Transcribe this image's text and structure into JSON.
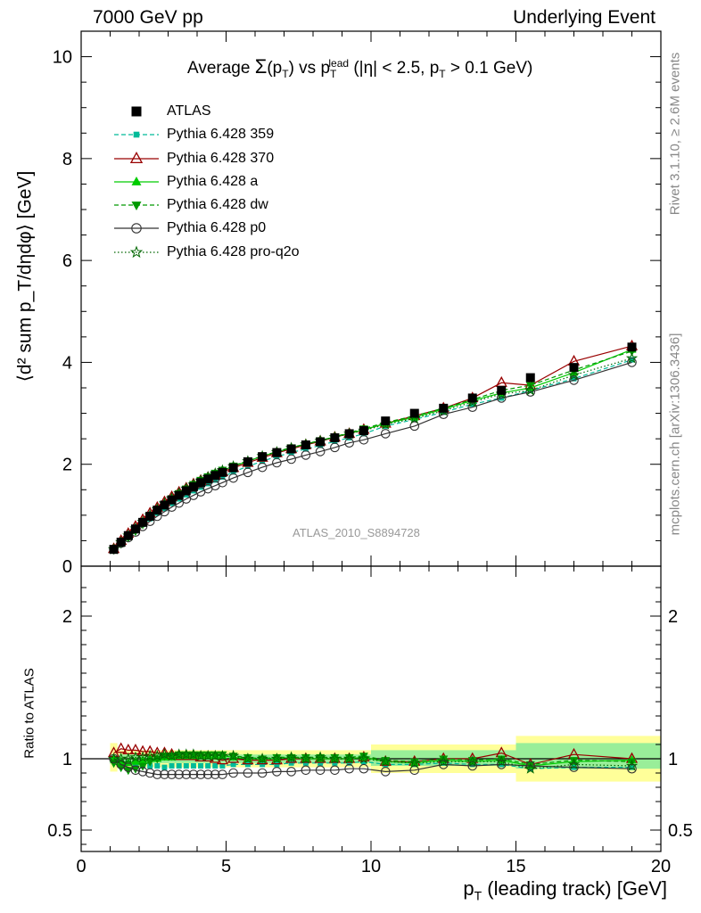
{
  "header": {
    "left": "7000 GeV pp",
    "right": "Underlying Event"
  },
  "title": {
    "prefix": "Average ",
    "sigma": "Σ",
    "p": "(p",
    "t_sub": "T",
    "close": ")",
    "vs": " vs p",
    "lead_sup": "lead",
    "lead_sub": "T",
    "cut": " (|η| < 2.5, p",
    "cut_sub": "T",
    "cut_end": " > 0.1 GeV)"
  },
  "axes": {
    "y_main_label": "⟨d² sum p_T/dηdφ⟩ [GeV]",
    "y_ratio_label": "Ratio to ATLAS",
    "x_label_pre": "p",
    "x_label_sub": "T",
    "x_label_post": " (leading track) [GeV]"
  },
  "side": {
    "rivet": "Rivet 3.1.10, ≥ 2.6M events",
    "mcplots": "mcplots.cern.ch [arXiv:1306.3436]"
  },
  "watermark": "ATLAS_2010_S8894728",
  "legend": [
    {
      "label": "ATLAS",
      "color": "#000000",
      "marker": "square-filled",
      "line": "none"
    },
    {
      "label": "Pythia 6.428 359",
      "color": "#00bb99",
      "marker": "square-small",
      "line": "dashed"
    },
    {
      "label": "Pythia 6.428 370",
      "color": "#990000",
      "marker": "triangle-open",
      "line": "solid"
    },
    {
      "label": "Pythia 6.428 a",
      "color": "#00cc00",
      "marker": "triangle-filled",
      "line": "solid"
    },
    {
      "label": "Pythia 6.428 dw",
      "color": "#009900",
      "marker": "triangle-down",
      "line": "dashed"
    },
    {
      "label": "Pythia 6.428 p0",
      "color": "#333333",
      "marker": "circle-open",
      "line": "solid"
    },
    {
      "label": "Pythia 6.428 pro-q2o",
      "color": "#006600",
      "marker": "star",
      "line": "dotted"
    }
  ],
  "chart_data": [
    {
      "type": "scatter",
      "panel": "main",
      "x": [
        1.125,
        1.375,
        1.625,
        1.875,
        2.125,
        2.375,
        2.625,
        2.875,
        3.125,
        3.375,
        3.625,
        3.875,
        4.125,
        4.375,
        4.625,
        4.875,
        5.25,
        5.75,
        6.25,
        6.75,
        7.25,
        7.75,
        8.25,
        8.75,
        9.25,
        9.75,
        10.5,
        11.5,
        12.5,
        13.5,
        14.5,
        15.5,
        17,
        19
      ],
      "xlim": [
        0,
        20
      ],
      "ylim": [
        0,
        10.5
      ],
      "yticks": [
        0,
        2,
        4,
        6,
        8,
        10
      ],
      "xticks": [
        0,
        5,
        10,
        15,
        20
      ],
      "series": [
        {
          "name": "ATLAS",
          "values": [
            0.33,
            0.47,
            0.6,
            0.73,
            0.86,
            0.98,
            1.1,
            1.2,
            1.3,
            1.39,
            1.48,
            1.56,
            1.64,
            1.71,
            1.78,
            1.84,
            1.93,
            2.05,
            2.15,
            2.23,
            2.3,
            2.38,
            2.44,
            2.52,
            2.6,
            2.66,
            2.85,
            3.0,
            3.1,
            3.3,
            3.45,
            3.7,
            3.9,
            4.3
          ]
        },
        {
          "name": "Pythia 6.428 359",
          "values": [
            0.33,
            0.46,
            0.58,
            0.7,
            0.82,
            0.93,
            1.04,
            1.13,
            1.23,
            1.32,
            1.4,
            1.48,
            1.55,
            1.62,
            1.69,
            1.75,
            1.85,
            1.96,
            2.06,
            2.15,
            2.23,
            2.3,
            2.37,
            2.45,
            2.52,
            2.6,
            2.75,
            2.88,
            3.02,
            3.18,
            3.3,
            3.45,
            3.68,
            4.05
          ]
        },
        {
          "name": "Pythia 6.428 370",
          "values": [
            0.34,
            0.5,
            0.64,
            0.78,
            0.91,
            1.04,
            1.15,
            1.26,
            1.36,
            1.45,
            1.53,
            1.61,
            1.68,
            1.74,
            1.8,
            1.85,
            1.93,
            2.03,
            2.13,
            2.22,
            2.3,
            2.38,
            2.45,
            2.53,
            2.6,
            2.68,
            2.8,
            2.95,
            3.1,
            3.3,
            3.6,
            3.55,
            4.02,
            4.32
          ]
        },
        {
          "name": "Pythia 6.428 a",
          "values": [
            0.33,
            0.46,
            0.59,
            0.72,
            0.85,
            0.98,
            1.1,
            1.22,
            1.32,
            1.42,
            1.51,
            1.6,
            1.68,
            1.75,
            1.82,
            1.88,
            1.96,
            2.06,
            2.16,
            2.24,
            2.32,
            2.4,
            2.46,
            2.54,
            2.61,
            2.68,
            2.8,
            2.92,
            3.08,
            3.25,
            3.4,
            3.5,
            3.8,
            4.25
          ]
        },
        {
          "name": "Pythia 6.428 dw",
          "values": [
            0.32,
            0.44,
            0.56,
            0.69,
            0.82,
            0.96,
            1.1,
            1.22,
            1.33,
            1.43,
            1.52,
            1.61,
            1.69,
            1.76,
            1.83,
            1.89,
            1.97,
            2.07,
            2.16,
            2.25,
            2.33,
            2.4,
            2.47,
            2.54,
            2.62,
            2.7,
            2.82,
            2.95,
            3.1,
            3.27,
            3.45,
            3.55,
            3.85,
            4.22
          ]
        },
        {
          "name": "Pythia 6.428 p0",
          "values": [
            0.33,
            0.45,
            0.56,
            0.67,
            0.78,
            0.88,
            0.98,
            1.07,
            1.16,
            1.24,
            1.32,
            1.39,
            1.46,
            1.52,
            1.58,
            1.64,
            1.73,
            1.84,
            1.94,
            2.03,
            2.1,
            2.18,
            2.25,
            2.33,
            2.42,
            2.48,
            2.6,
            2.75,
            2.98,
            3.12,
            3.3,
            3.42,
            3.65,
            4.0
          ]
        },
        {
          "name": "Pythia 6.428 pro-q2o",
          "values": [
            0.33,
            0.47,
            0.6,
            0.74,
            0.87,
            1.0,
            1.12,
            1.23,
            1.33,
            1.43,
            1.52,
            1.6,
            1.68,
            1.75,
            1.82,
            1.88,
            1.96,
            2.06,
            2.16,
            2.24,
            2.32,
            2.39,
            2.46,
            2.53,
            2.6,
            2.66,
            2.78,
            2.9,
            3.05,
            3.22,
            3.38,
            3.45,
            3.75,
            4.08
          ]
        }
      ]
    },
    {
      "type": "line",
      "panel": "ratio",
      "x": [
        1.125,
        1.375,
        1.625,
        1.875,
        2.125,
        2.375,
        2.625,
        2.875,
        3.125,
        3.375,
        3.625,
        3.875,
        4.125,
        4.375,
        4.625,
        4.875,
        5.25,
        5.75,
        6.25,
        6.75,
        7.25,
        7.75,
        8.25,
        8.75,
        9.25,
        9.75,
        10.5,
        11.5,
        12.5,
        13.5,
        14.5,
        15.5,
        17,
        19
      ],
      "xlim": [
        0,
        20
      ],
      "ylim": [
        0.35,
        2.35
      ],
      "yticks": [
        0.5,
        1,
        2
      ],
      "band_inner": [
        {
          "x0": 1,
          "x1": 10,
          "lo": 0.97,
          "hi": 1.03
        },
        {
          "x0": 10,
          "x1": 15,
          "lo": 0.95,
          "hi": 1.06
        },
        {
          "x0": 15,
          "x1": 20,
          "lo": 0.93,
          "hi": 1.11
        }
      ],
      "band_outer": [
        {
          "x0": 1,
          "x1": 1.25,
          "lo": 0.91,
          "hi": 1.11
        },
        {
          "x0": 1.25,
          "x1": 10,
          "lo": 0.94,
          "hi": 1.06
        },
        {
          "x0": 10,
          "x1": 15,
          "lo": 0.9,
          "hi": 1.1
        },
        {
          "x0": 15,
          "x1": 20,
          "lo": 0.84,
          "hi": 1.16
        }
      ],
      "series": [
        {
          "name": "Pythia 6.428 359",
          "values": [
            1.0,
            0.98,
            0.97,
            0.96,
            0.95,
            0.95,
            0.95,
            0.94,
            0.95,
            0.95,
            0.95,
            0.95,
            0.95,
            0.95,
            0.95,
            0.95,
            0.96,
            0.96,
            0.96,
            0.96,
            0.97,
            0.97,
            0.97,
            0.97,
            0.97,
            0.98,
            0.96,
            0.96,
            0.97,
            0.96,
            0.96,
            0.93,
            0.94,
            0.94
          ]
        },
        {
          "name": "Pythia 6.428 370",
          "values": [
            1.04,
            1.07,
            1.06,
            1.06,
            1.05,
            1.05,
            1.04,
            1.04,
            1.03,
            1.02,
            1.02,
            1.02,
            1.01,
            1.01,
            1.0,
            0.99,
            1.0,
            0.99,
            0.99,
            0.99,
            1.0,
            1.0,
            1.0,
            1.0,
            1.0,
            1.01,
            0.98,
            0.98,
            1.0,
            1.0,
            1.04,
            0.96,
            1.03,
            1.0
          ]
        },
        {
          "name": "Pythia 6.428 a",
          "values": [
            1.0,
            0.98,
            0.97,
            0.98,
            0.99,
            1.0,
            1.0,
            1.01,
            1.01,
            1.02,
            1.02,
            1.02,
            1.02,
            1.02,
            1.02,
            1.02,
            1.01,
            1.0,
            1.0,
            1.0,
            1.01,
            1.0,
            1.0,
            1.0,
            1.0,
            1.01,
            0.98,
            0.97,
            0.99,
            0.98,
            0.99,
            0.95,
            0.98,
            0.99
          ]
        },
        {
          "name": "Pythia 6.428 dw",
          "values": [
            0.97,
            0.94,
            0.92,
            0.93,
            0.95,
            0.98,
            1.0,
            1.02,
            1.02,
            1.03,
            1.03,
            1.03,
            1.03,
            1.03,
            1.03,
            1.03,
            1.02,
            1.01,
            1.0,
            1.01,
            1.01,
            1.01,
            1.01,
            1.01,
            1.01,
            1.02,
            0.99,
            0.98,
            1.0,
            0.99,
            1.0,
            0.96,
            0.99,
            0.98
          ]
        },
        {
          "name": "Pythia 6.428 p0",
          "values": [
            1.0,
            0.96,
            0.94,
            0.92,
            0.91,
            0.9,
            0.89,
            0.89,
            0.89,
            0.89,
            0.89,
            0.89,
            0.89,
            0.89,
            0.89,
            0.89,
            0.9,
            0.9,
            0.9,
            0.91,
            0.91,
            0.92,
            0.92,
            0.92,
            0.93,
            0.93,
            0.91,
            0.92,
            0.96,
            0.95,
            0.96,
            0.95,
            0.94,
            0.93
          ]
        },
        {
          "name": "Pythia 6.428 pro-q2o",
          "values": [
            1.0,
            1.0,
            1.0,
            1.01,
            1.01,
            1.02,
            1.02,
            1.03,
            1.02,
            1.03,
            1.03,
            1.03,
            1.02,
            1.02,
            1.02,
            1.02,
            1.02,
            1.0,
            1.0,
            1.0,
            1.01,
            1.0,
            1.01,
            1.0,
            1.0,
            1.0,
            0.98,
            0.97,
            0.98,
            0.98,
            0.98,
            0.93,
            0.96,
            0.95
          ]
        }
      ]
    }
  ]
}
